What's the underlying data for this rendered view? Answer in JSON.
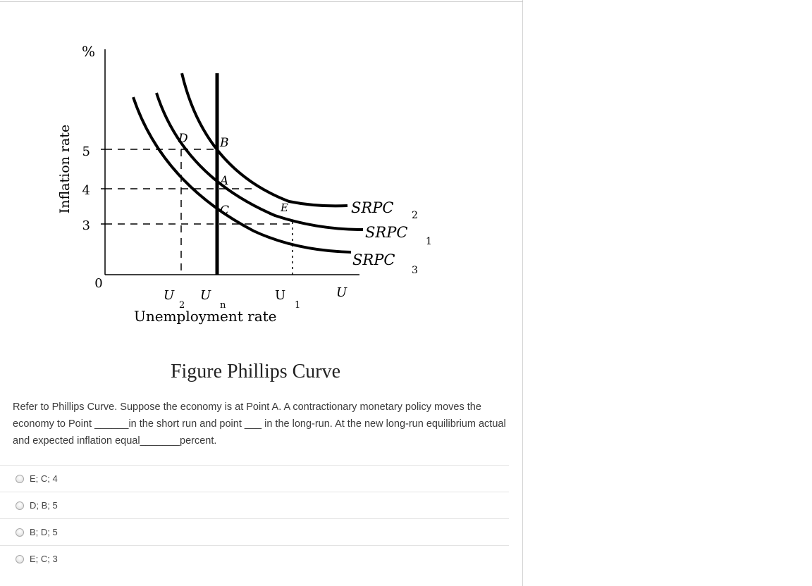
{
  "figure": {
    "y_axis_label": "Inflation rate",
    "y_unit": "%",
    "x_axis_label": "Unemployment rate",
    "x_axis_end": "U",
    "origin": "0",
    "y_ticks": [
      "5",
      "4",
      "3"
    ],
    "x_ticks": [
      {
        "main": "U",
        "sub": "2"
      },
      {
        "main": "U",
        "sub": "n"
      },
      {
        "main": "U",
        "sub": "1"
      }
    ],
    "points": [
      "D",
      "B",
      "A",
      "C",
      "E"
    ],
    "curves": [
      {
        "main": "SRPC",
        "sub": "2"
      },
      {
        "main": "SRPC",
        "sub": "1"
      },
      {
        "main": "SRPC",
        "sub": "3"
      }
    ],
    "colors": {
      "lines": "#000000",
      "background": "#ffffff"
    }
  },
  "caption": "Figure Phillips Curve",
  "question": "Refer to Phillips Curve. Suppose the economy is at Point A. A contractionary monetary policy moves the economy to Point ______in the short run and point ___ in the long-run. At the new long-run equilibrium actual and expected inflation equal_______percent.",
  "options": [
    {
      "label": "E; C; 4"
    },
    {
      "label": "D; B; 5"
    },
    {
      "label": "B; D; 5"
    },
    {
      "label": "E; C; 3"
    }
  ]
}
